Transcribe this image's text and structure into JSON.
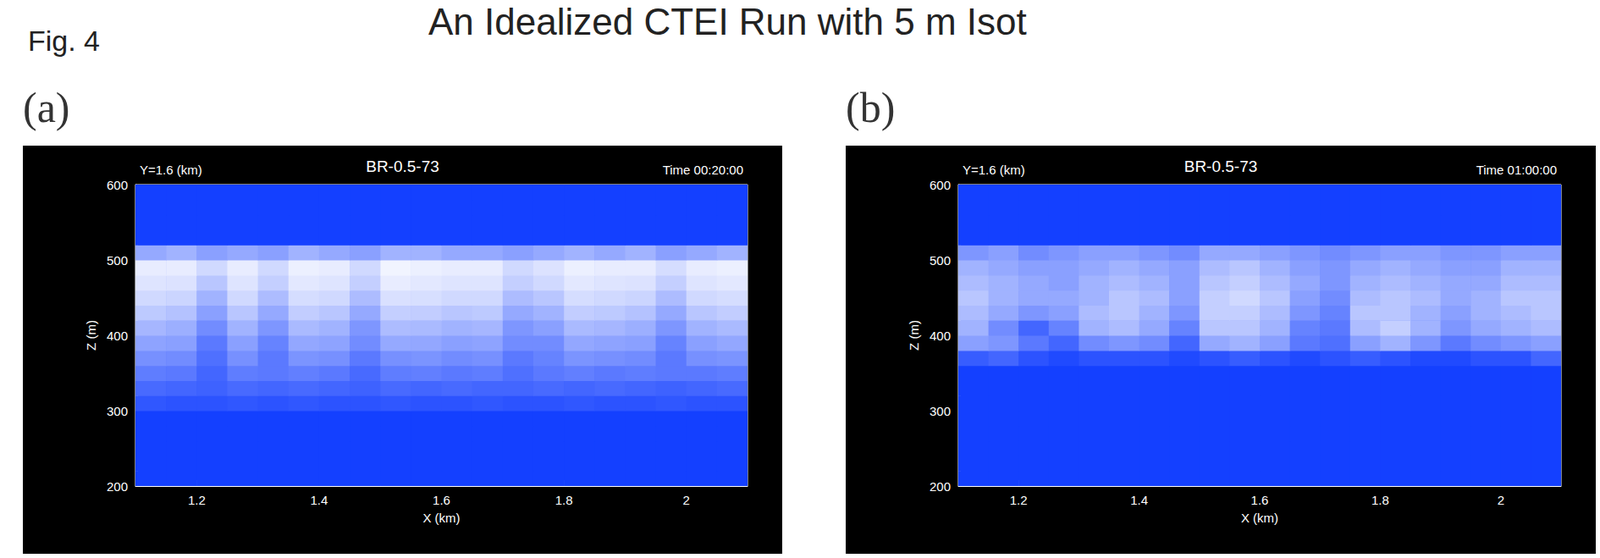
{
  "figure": {
    "label": "Fig. 4",
    "heading": "An Idealized CTEI Run with 5 m Isot"
  },
  "chart_data": [
    {
      "type": "heatmap",
      "panel": "(a)",
      "title": "BR-0.5-73",
      "annotations": {
        "left": "Y=1.6 (km)",
        "right": "Time 00:20:00"
      },
      "x_label": "X (km)",
      "y_label": "Z (m)",
      "xlim": [
        1.1,
        2.1
      ],
      "xticks": [
        1.2,
        1.4,
        1.6,
        1.8,
        2.0
      ],
      "ylim": [
        200,
        600
      ],
      "yticks": [
        200,
        300,
        400,
        500,
        600
      ],
      "x_edges": [
        1.1,
        1.15,
        1.2,
        1.25,
        1.3,
        1.35,
        1.4,
        1.45,
        1.5,
        1.55,
        1.6,
        1.65,
        1.7,
        1.75,
        1.8,
        1.85,
        1.9,
        1.95,
        2.0,
        2.05,
        2.1
      ],
      "z_edges": [
        200,
        220,
        240,
        260,
        280,
        300,
        320,
        340,
        360,
        380,
        400,
        420,
        440,
        460,
        480,
        500,
        520,
        540,
        560,
        580,
        600
      ],
      "cells": [
        [
          0,
          0,
          0,
          0,
          0,
          0,
          0,
          0,
          0,
          0,
          0,
          0,
          0,
          0,
          0,
          0,
          0,
          0,
          0,
          0
        ],
        [
          0,
          0,
          0,
          0,
          0,
          0,
          0,
          0,
          0,
          0,
          0,
          0,
          0,
          0,
          0,
          0,
          0,
          0,
          0,
          0
        ],
        [
          0,
          0,
          0,
          0,
          0,
          0,
          0,
          0,
          0,
          0,
          0,
          0,
          0,
          0,
          0,
          0,
          0,
          0,
          0,
          0
        ],
        [
          0,
          0,
          0,
          0,
          0,
          0,
          0,
          0,
          0,
          0,
          0,
          0,
          0,
          0,
          0,
          0,
          0,
          0,
          0,
          0
        ],
        [
          0,
          0,
          0,
          0,
          0,
          0,
          0,
          0,
          0,
          0,
          0,
          0,
          0,
          0,
          0,
          0,
          0,
          0,
          0,
          0
        ],
        [
          0.12,
          0.1,
          0.1,
          0.12,
          0.1,
          0.12,
          0.1,
          0.1,
          0.12,
          0.1,
          0.1,
          0.12,
          0.1,
          0.1,
          0.12,
          0.1,
          0.1,
          0.12,
          0.1,
          0.1
        ],
        [
          0.22,
          0.2,
          0.18,
          0.22,
          0.2,
          0.22,
          0.2,
          0.18,
          0.22,
          0.2,
          0.22,
          0.2,
          0.2,
          0.22,
          0.2,
          0.22,
          0.2,
          0.18,
          0.2,
          0.22
        ],
        [
          0.32,
          0.3,
          0.2,
          0.32,
          0.3,
          0.33,
          0.3,
          0.22,
          0.32,
          0.33,
          0.3,
          0.32,
          0.25,
          0.3,
          0.33,
          0.3,
          0.32,
          0.3,
          0.3,
          0.32
        ],
        [
          0.42,
          0.4,
          0.25,
          0.42,
          0.3,
          0.44,
          0.42,
          0.3,
          0.42,
          0.44,
          0.4,
          0.42,
          0.3,
          0.35,
          0.44,
          0.42,
          0.4,
          0.3,
          0.42,
          0.44
        ],
        [
          0.52,
          0.5,
          0.3,
          0.5,
          0.35,
          0.54,
          0.52,
          0.4,
          0.55,
          0.54,
          0.5,
          0.52,
          0.4,
          0.4,
          0.54,
          0.52,
          0.5,
          0.35,
          0.5,
          0.54
        ],
        [
          0.62,
          0.58,
          0.4,
          0.6,
          0.45,
          0.64,
          0.6,
          0.45,
          0.65,
          0.64,
          0.6,
          0.62,
          0.45,
          0.5,
          0.64,
          0.62,
          0.58,
          0.45,
          0.6,
          0.64
        ],
        [
          0.72,
          0.68,
          0.5,
          0.7,
          0.55,
          0.74,
          0.7,
          0.55,
          0.75,
          0.74,
          0.7,
          0.72,
          0.55,
          0.6,
          0.74,
          0.72,
          0.68,
          0.55,
          0.7,
          0.74
        ],
        [
          0.8,
          0.78,
          0.6,
          0.8,
          0.65,
          0.82,
          0.8,
          0.65,
          0.84,
          0.83,
          0.8,
          0.8,
          0.65,
          0.7,
          0.82,
          0.8,
          0.78,
          0.65,
          0.8,
          0.82
        ],
        [
          0.86,
          0.85,
          0.7,
          0.86,
          0.75,
          0.88,
          0.86,
          0.75,
          0.9,
          0.88,
          0.86,
          0.86,
          0.75,
          0.8,
          0.88,
          0.86,
          0.85,
          0.75,
          0.86,
          0.88
        ],
        [
          0.9,
          0.9,
          0.8,
          0.9,
          0.8,
          0.92,
          0.9,
          0.8,
          0.94,
          0.92,
          0.9,
          0.9,
          0.8,
          0.85,
          0.92,
          0.9,
          0.9,
          0.82,
          0.9,
          0.92
        ],
        [
          0.55,
          0.6,
          0.5,
          0.55,
          0.5,
          0.6,
          0.55,
          0.5,
          0.6,
          0.6,
          0.55,
          0.55,
          0.5,
          0.55,
          0.6,
          0.55,
          0.6,
          0.5,
          0.55,
          0.6
        ],
        [
          0,
          0,
          0,
          0,
          0,
          0,
          0,
          0,
          0,
          0,
          0,
          0,
          0,
          0,
          0,
          0,
          0,
          0,
          0,
          0
        ],
        [
          0,
          0,
          0,
          0,
          0,
          0,
          0,
          0,
          0,
          0,
          0,
          0,
          0,
          0,
          0,
          0,
          0,
          0,
          0,
          0
        ],
        [
          0,
          0,
          0,
          0,
          0,
          0,
          0,
          0,
          0,
          0,
          0,
          0,
          0,
          0,
          0,
          0,
          0,
          0,
          0,
          0
        ],
        [
          0,
          0,
          0,
          0,
          0,
          0,
          0,
          0,
          0,
          0,
          0,
          0,
          0,
          0,
          0,
          0,
          0,
          0,
          0,
          0
        ]
      ]
    },
    {
      "type": "heatmap",
      "panel": "(b)",
      "title": "BR-0.5-73",
      "annotations": {
        "left": "Y=1.6 (km)",
        "right": "Time 01:00:00"
      },
      "x_label": "X (km)",
      "y_label": "Z (m)",
      "xlim": [
        1.1,
        2.1
      ],
      "xticks": [
        1.2,
        1.4,
        1.6,
        1.8,
        2.0
      ],
      "ylim": [
        200,
        600
      ],
      "yticks": [
        200,
        300,
        400,
        500,
        600
      ],
      "x_edges": [
        1.1,
        1.15,
        1.2,
        1.25,
        1.3,
        1.35,
        1.4,
        1.45,
        1.5,
        1.55,
        1.6,
        1.65,
        1.7,
        1.75,
        1.8,
        1.85,
        1.9,
        1.95,
        2.0,
        2.05,
        2.1
      ],
      "z_edges": [
        200,
        220,
        240,
        260,
        280,
        300,
        320,
        340,
        360,
        380,
        400,
        420,
        440,
        460,
        480,
        500,
        520,
        540,
        560,
        580,
        600
      ],
      "cells": [
        [
          0,
          0,
          0,
          0,
          0,
          0,
          0,
          0,
          0,
          0,
          0,
          0,
          0,
          0,
          0,
          0,
          0,
          0,
          0,
          0
        ],
        [
          0,
          0,
          0,
          0,
          0,
          0,
          0,
          0,
          0,
          0,
          0,
          0,
          0,
          0,
          0,
          0,
          0,
          0,
          0,
          0
        ],
        [
          0,
          0,
          0,
          0,
          0,
          0,
          0,
          0,
          0,
          0,
          0,
          0,
          0,
          0,
          0,
          0,
          0,
          0,
          0,
          0
        ],
        [
          0,
          0,
          0,
          0,
          0,
          0,
          0,
          0,
          0,
          0,
          0,
          0,
          0,
          0,
          0,
          0,
          0,
          0,
          0,
          0
        ],
        [
          0,
          0,
          0,
          0,
          0,
          0,
          0,
          0,
          0,
          0,
          0,
          0,
          0,
          0,
          0,
          0,
          0,
          0,
          0,
          0
        ],
        [
          0,
          0,
          0,
          0,
          0,
          0,
          0,
          0,
          0,
          0,
          0,
          0,
          0,
          0,
          0,
          0,
          0,
          0,
          0,
          0
        ],
        [
          0,
          0,
          0,
          0,
          0,
          0,
          0,
          0,
          0,
          0,
          0,
          0,
          0,
          0,
          0,
          0,
          0,
          0,
          0,
          0
        ],
        [
          0,
          0,
          0,
          0,
          0,
          0,
          0,
          0,
          0,
          0,
          0,
          0,
          0,
          0,
          0,
          0,
          0,
          0,
          0,
          0
        ],
        [
          0.15,
          0.2,
          0.1,
          0.05,
          0.1,
          0.1,
          0.1,
          0.05,
          0.1,
          0.15,
          0.1,
          0.05,
          0.1,
          0.15,
          0.1,
          0.05,
          0.05,
          0.1,
          0.1,
          0.2
        ],
        [
          0.5,
          0.45,
          0.3,
          0.2,
          0.4,
          0.45,
          0.4,
          0.2,
          0.55,
          0.6,
          0.5,
          0.3,
          0.25,
          0.5,
          0.6,
          0.45,
          0.3,
          0.4,
          0.45,
          0.5
        ],
        [
          0.6,
          0.4,
          0.2,
          0.35,
          0.6,
          0.65,
          0.55,
          0.35,
          0.7,
          0.7,
          0.6,
          0.35,
          0.3,
          0.65,
          0.75,
          0.6,
          0.45,
          0.55,
          0.6,
          0.65
        ],
        [
          0.65,
          0.55,
          0.45,
          0.5,
          0.65,
          0.7,
          0.6,
          0.45,
          0.75,
          0.75,
          0.65,
          0.45,
          0.35,
          0.7,
          0.7,
          0.6,
          0.5,
          0.6,
          0.65,
          0.7
        ],
        [
          0.7,
          0.6,
          0.55,
          0.55,
          0.6,
          0.7,
          0.65,
          0.5,
          0.75,
          0.8,
          0.7,
          0.5,
          0.4,
          0.65,
          0.7,
          0.65,
          0.55,
          0.6,
          0.7,
          0.7
        ],
        [
          0.65,
          0.6,
          0.55,
          0.5,
          0.6,
          0.65,
          0.6,
          0.5,
          0.7,
          0.75,
          0.65,
          0.55,
          0.45,
          0.6,
          0.65,
          0.6,
          0.55,
          0.55,
          0.65,
          0.65
        ],
        [
          0.6,
          0.55,
          0.5,
          0.5,
          0.55,
          0.6,
          0.55,
          0.5,
          0.65,
          0.7,
          0.6,
          0.5,
          0.45,
          0.55,
          0.6,
          0.55,
          0.5,
          0.5,
          0.6,
          0.6
        ],
        [
          0.45,
          0.5,
          0.4,
          0.45,
          0.5,
          0.5,
          0.45,
          0.4,
          0.55,
          0.55,
          0.5,
          0.45,
          0.4,
          0.45,
          0.5,
          0.5,
          0.45,
          0.45,
          0.5,
          0.5
        ],
        [
          0,
          0,
          0,
          0,
          0,
          0,
          0,
          0,
          0,
          0,
          0,
          0,
          0,
          0,
          0,
          0,
          0,
          0,
          0,
          0
        ],
        [
          0,
          0,
          0,
          0,
          0,
          0,
          0,
          0,
          0,
          0,
          0,
          0,
          0,
          0,
          0,
          0,
          0,
          0,
          0,
          0
        ],
        [
          0,
          0,
          0,
          0,
          0,
          0,
          0,
          0,
          0,
          0,
          0,
          0,
          0,
          0,
          0,
          0,
          0,
          0,
          0,
          0
        ],
        [
          0,
          0,
          0,
          0,
          0,
          0,
          0,
          0,
          0,
          0,
          0,
          0,
          0,
          0,
          0,
          0,
          0,
          0,
          0,
          0
        ]
      ]
    }
  ]
}
